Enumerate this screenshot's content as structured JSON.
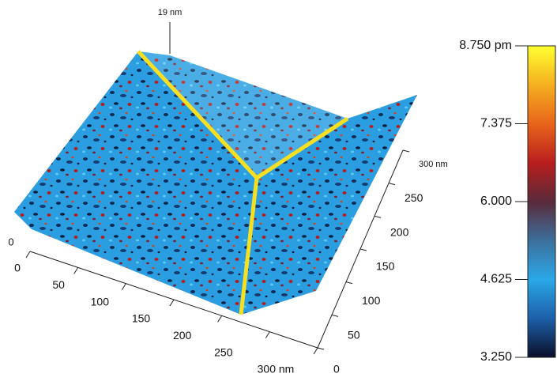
{
  "chart_data": {
    "type": "surface",
    "xlim": [
      0,
      300
    ],
    "xticks": [
      0,
      50,
      100,
      150,
      200,
      250,
      {
        "value": 300,
        "label": "300 nm"
      }
    ],
    "ylim": [
      0,
      300
    ],
    "yticks": [
      0,
      50,
      100,
      150,
      200,
      250,
      {
        "value": 300,
        "label": "300 nm"
      }
    ],
    "zlim": [
      0,
      19
    ],
    "zticks": [
      0,
      {
        "value": 19,
        "label": "19 nm"
      }
    ],
    "clim": [
      3.25,
      8.75
    ],
    "cticks": [
      {
        "value": 8.75,
        "label": "8.750 pm"
      },
      {
        "value": 7.375,
        "label": "7.375"
      },
      {
        "value": 6,
        "label": "6.000"
      },
      {
        "value": 4.625,
        "label": "4.625"
      },
      {
        "value": 3.25,
        "label": "3.250"
      }
    ],
    "colormap": [
      "#0a0f2a",
      "#1d5fa8",
      "#2aa8e8",
      "#3d6f9c",
      "#5a2a3a",
      "#b81e1e",
      "#e8641a",
      "#f5b020",
      "#ffff30"
    ]
  }
}
